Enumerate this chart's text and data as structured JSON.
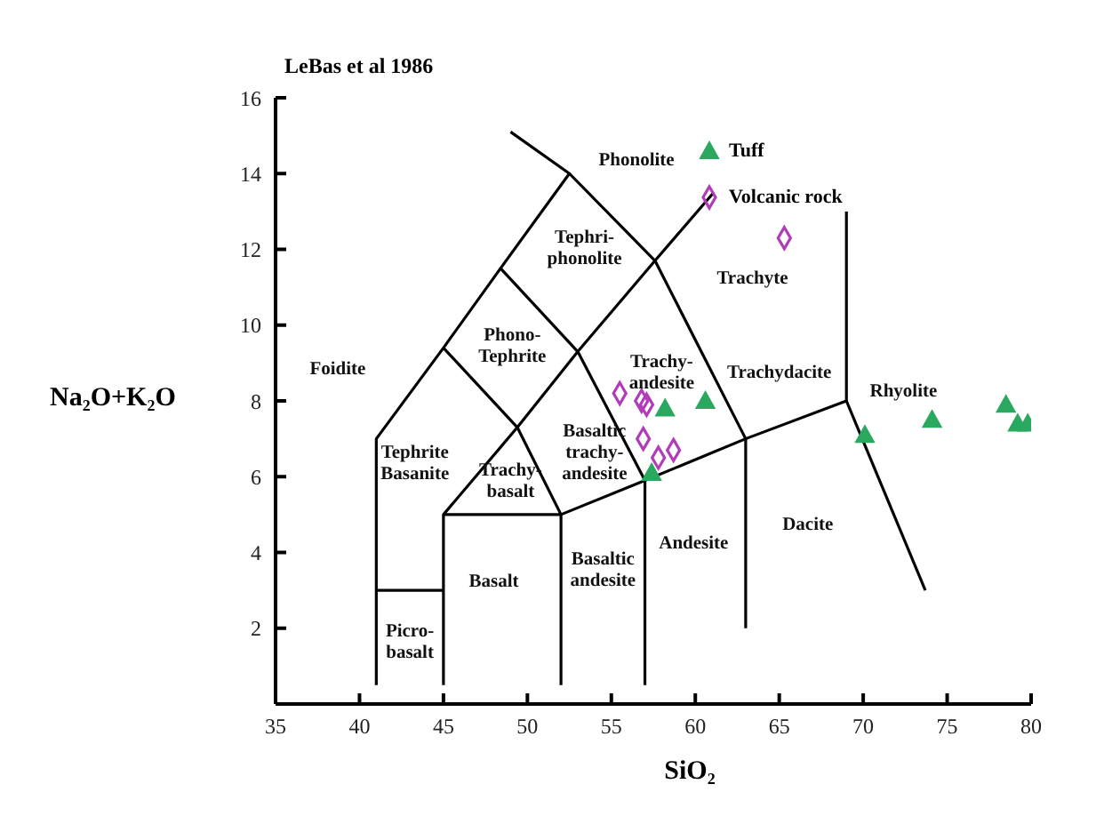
{
  "chart_data": {
    "type": "scatter",
    "title": "LeBas et al 1986",
    "xlabel": "SiO₂",
    "ylabel": "Na₂O+K₂O",
    "xlim": [
      35,
      80
    ],
    "xticks": [
      35,
      40,
      45,
      50,
      55,
      60,
      65,
      70,
      75,
      80
    ],
    "ylim": [
      0,
      16
    ],
    "yticks": [
      2,
      4,
      6,
      8,
      10,
      12,
      14,
      16
    ],
    "grid": false,
    "legend": "top",
    "series": [
      {
        "name": "Tuff",
        "marker": "triangle",
        "color": "#2aa860",
        "x": [
          58.2,
          60.6,
          57.4,
          70.1,
          74.1,
          78.5,
          79.2,
          79.8
        ],
        "values": [
          7.8,
          8.0,
          6.1,
          7.1,
          7.5,
          7.9,
          7.4,
          7.4
        ]
      },
      {
        "name": "Volcanic rock",
        "marker": "diamond",
        "color": "#b03cb8",
        "x": [
          55.5,
          56.8,
          57.1,
          56.9,
          57.8,
          58.7,
          65.3
        ],
        "values": [
          8.2,
          8.0,
          7.9,
          7.0,
          6.5,
          6.7,
          12.3
        ]
      },
      {
        "type": "line",
        "marker": "none",
        "color": "#000000",
        "x": [
          41,
          41,
          45,
          48.4,
          52.5,
          49
        ],
        "values": [
          0.5,
          7,
          9.4,
          11.5,
          14,
          15.1
        ]
      },
      {
        "type": "line",
        "marker": "none",
        "color": "#000000",
        "x": [
          41,
          45
        ],
        "values": [
          3,
          3
        ]
      },
      {
        "type": "line",
        "marker": "none",
        "color": "#000000",
        "x": [
          45,
          45,
          52,
          52
        ],
        "values": [
          0.5,
          5,
          5,
          0.5
        ]
      },
      {
        "type": "line",
        "marker": "none",
        "color": "#000000",
        "x": [
          45,
          49.4,
          53,
          57.6,
          61.1
        ],
        "values": [
          5,
          7.3,
          9.3,
          11.7,
          13.5
        ]
      },
      {
        "type": "line",
        "marker": "none",
        "color": "#000000",
        "x": [
          45,
          49.4,
          52
        ],
        "values": [
          9.4,
          7.3,
          5
        ]
      },
      {
        "type": "line",
        "marker": "none",
        "color": "#000000",
        "x": [
          48.4,
          53,
          57,
          57
        ],
        "values": [
          11.5,
          9.3,
          5.9,
          0.5
        ]
      },
      {
        "type": "line",
        "marker": "none",
        "color": "#000000",
        "x": [
          52.5,
          57.6,
          63,
          63
        ],
        "values": [
          14,
          11.7,
          7,
          2
        ]
      },
      {
        "type": "line",
        "marker": "none",
        "color": "#000000",
        "x": [
          52,
          57,
          63,
          69,
          69
        ],
        "values": [
          5,
          5.9,
          7,
          8,
          13
        ]
      },
      {
        "type": "line",
        "marker": "none",
        "color": "#000000",
        "x": [
          69,
          73.7
        ],
        "values": [
          8,
          3
        ]
      }
    ],
    "annotations": [
      "Foidite",
      "Phonolite",
      "Tephri-\nphonolite",
      "Trachyte",
      "Phono-\nTephrite",
      "Trachy-\nandesite",
      "Trachydacite",
      "Rhyolite",
      "Tephrite\nBasanite",
      "Trachy-\nbasalt",
      "Basaltic\ntrachy-\nandesite",
      "Dacite",
      "Andesite",
      "Basalt",
      "Basaltic\nandesite",
      "Picro-\nbasalt"
    ]
  }
}
